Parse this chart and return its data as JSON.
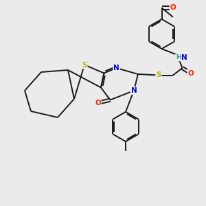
{
  "background_color": "#ebebeb",
  "bond_color": "#1a1a1a",
  "S_color": "#b8b800",
  "N_color": "#0000ee",
  "O_color": "#ff2200",
  "H_color": "#3a9090",
  "figsize": [
    3.0,
    3.0
  ],
  "dpi": 100,
  "lw": 1.4,
  "fs": 7.0,
  "xlim": [
    0,
    10
  ],
  "ylim": [
    0,
    10
  ]
}
